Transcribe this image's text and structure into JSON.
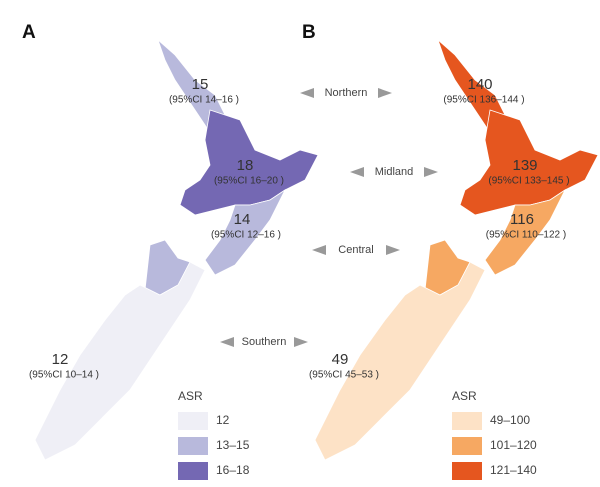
{
  "region_names": [
    "Northern",
    "Midland",
    "Central",
    "Southern"
  ],
  "panels": [
    {
      "label": "A",
      "regions": [
        {
          "value": "15",
          "ci": "(95%CI 14–16 )",
          "color": "#b8b9dc"
        },
        {
          "value": "18",
          "ci": "(95%CI 16–20 )",
          "color": "#7468b3"
        },
        {
          "value": "14",
          "ci": "(95%CI 12–16 )",
          "color": "#b8b9dc"
        },
        {
          "value": "12",
          "ci": "(95%CI 10–14 )",
          "color": "#efeff6"
        }
      ],
      "legend": {
        "title": "ASR",
        "items": [
          {
            "label": "12",
            "color": "#efeff6"
          },
          {
            "label": "13–15",
            "color": "#b8b9dc"
          },
          {
            "label": "16–18",
            "color": "#7468b3"
          }
        ]
      }
    },
    {
      "label": "B",
      "regions": [
        {
          "value": "140",
          "ci": "(95%CI 136–144 )",
          "color": "#e5561f"
        },
        {
          "value": "139",
          "ci": "(95%CI 133–145 )",
          "color": "#e5561f"
        },
        {
          "value": "116",
          "ci": "(95%CI 110–122 )",
          "color": "#f6a862"
        },
        {
          "value": "49",
          "ci": "(95%CI 45–53 )",
          "color": "#fde2c6"
        }
      ],
      "legend": {
        "title": "ASR",
        "items": [
          {
            "label": "49–100",
            "color": "#fde2c6"
          },
          {
            "label": "101–120",
            "color": "#f6a862"
          },
          {
            "label": "121–140",
            "color": "#e5561f"
          }
        ]
      }
    }
  ]
}
